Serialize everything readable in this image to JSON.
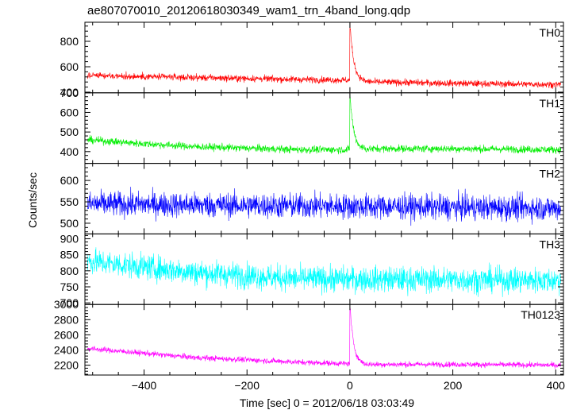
{
  "chart_data": {
    "type": "line",
    "title": "ae807070010_20120618030349_wam1_trn_4band_long.qdp",
    "xlabel": "Time [sec] 0 = 2012/06/18 03:03:49",
    "ylabel": "Counts/sec",
    "xlim": [
      -515,
      415
    ],
    "xticks": [
      -400,
      -200,
      0,
      200,
      400
    ],
    "grid": false,
    "panels": [
      {
        "name": "TH0",
        "color": "#ff0000",
        "ylim": [
          395,
          950
        ],
        "yticks": [
          400,
          600,
          800
        ],
        "baseline": [
          [
            -510,
            530
          ],
          [
            -300,
            515
          ],
          [
            -100,
            500
          ],
          [
            -5,
            495
          ],
          [
            50,
            480
          ],
          [
            200,
            470
          ],
          [
            300,
            465
          ],
          [
            410,
            460
          ]
        ],
        "noise": 25,
        "peak": 950
      },
      {
        "name": "TH1",
        "color": "#00ee00",
        "ylim": [
          340,
          700
        ],
        "yticks": [
          400,
          500,
          600,
          700
        ],
        "baseline": [
          [
            -510,
            460
          ],
          [
            -400,
            440
          ],
          [
            -300,
            425
          ],
          [
            -100,
            410
          ],
          [
            -5,
            410
          ],
          [
            50,
            415
          ],
          [
            200,
            415
          ],
          [
            410,
            410
          ]
        ],
        "noise": 18,
        "peak": 700
      },
      {
        "name": "TH2",
        "color": "#0000ff",
        "ylim": [
          475,
          640
        ],
        "yticks": [
          500,
          550,
          600
        ],
        "baseline": [
          [
            -510,
            545
          ],
          [
            410,
            535
          ]
        ],
        "noise": 28,
        "peak": null
      },
      {
        "name": "TH3",
        "color": "#00ffff",
        "ylim": [
          695,
          915
        ],
        "yticks": [
          700,
          750,
          800,
          850,
          900
        ],
        "baseline": [
          [
            -510,
            830
          ],
          [
            -300,
            795
          ],
          [
            -100,
            775
          ],
          [
            410,
            770
          ]
        ],
        "noise": 38,
        "peak": null
      },
      {
        "name": "TH0123",
        "color": "#ff00ff",
        "ylim": [
          2070,
          3000
        ],
        "yticks": [
          2200,
          2400,
          2600,
          2800,
          3000
        ],
        "baseline": [
          [
            -510,
            2420
          ],
          [
            -300,
            2300
          ],
          [
            -100,
            2240
          ],
          [
            -5,
            2220
          ],
          [
            50,
            2210
          ],
          [
            200,
            2210
          ],
          [
            410,
            2200
          ]
        ],
        "noise": 35,
        "peak": 3000
      }
    ]
  }
}
